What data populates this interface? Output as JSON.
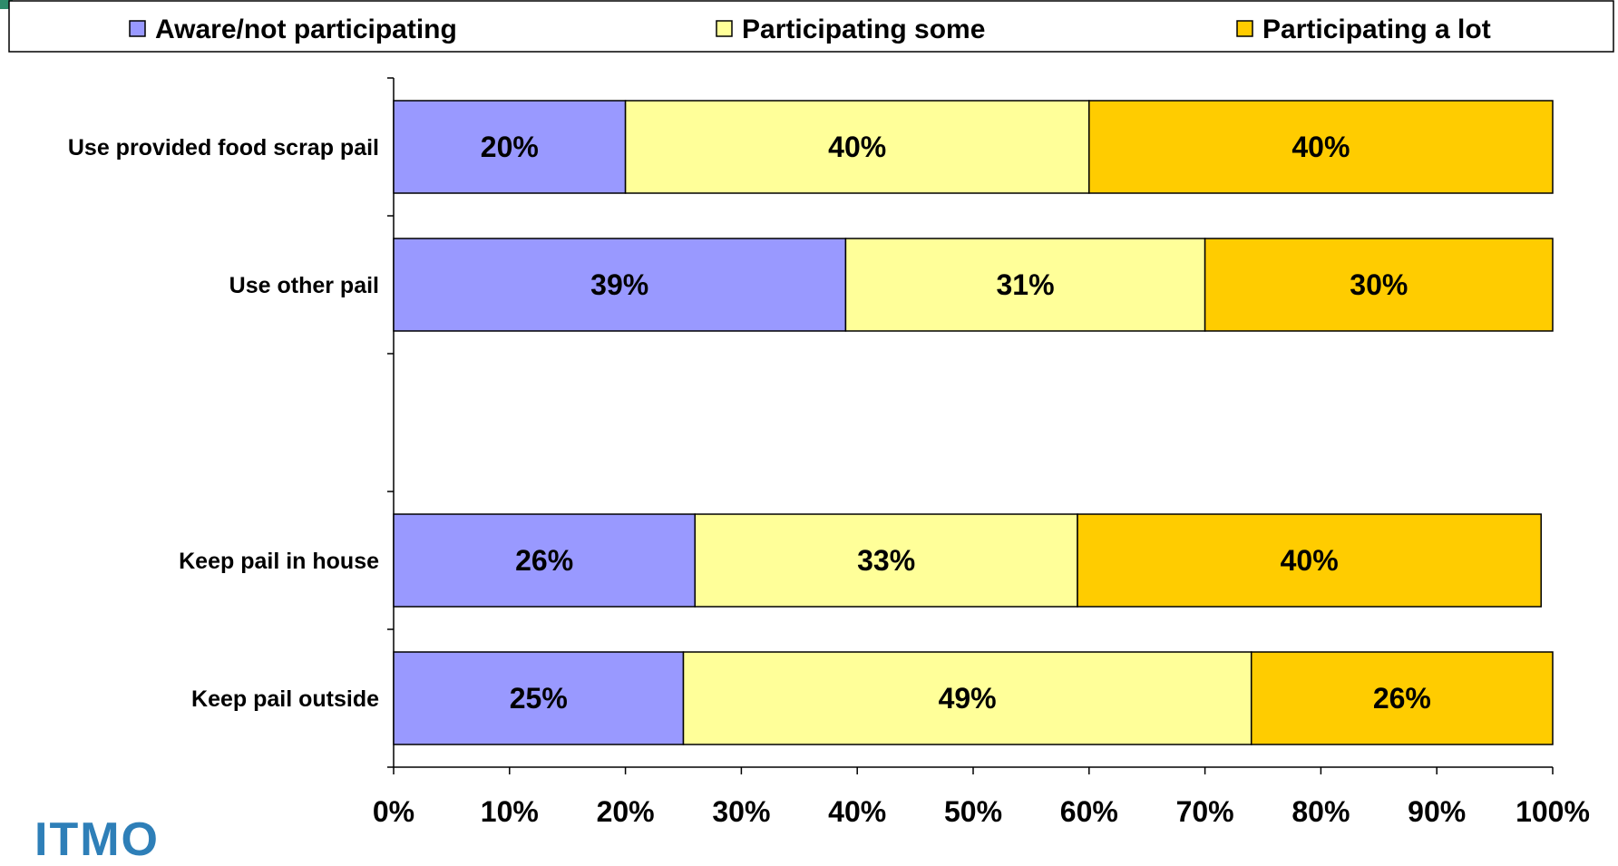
{
  "chart_data": {
    "type": "bar",
    "orientation": "horizontal",
    "stacked": true,
    "categories": [
      "Use provided food scrap pail",
      "Use other pail",
      "",
      "Keep pail in house",
      "Keep pail outside"
    ],
    "series": [
      {
        "name": "Aware/not participating",
        "color": "#9999ff",
        "values": [
          20,
          39,
          null,
          26,
          25
        ]
      },
      {
        "name": "Participating some",
        "color": "#ffff99",
        "values": [
          40,
          31,
          null,
          33,
          49
        ]
      },
      {
        "name": "Participating a lot",
        "color": "#ffcc00",
        "values": [
          40,
          30,
          null,
          40,
          26
        ]
      }
    ],
    "data_labels": [
      [
        "20%",
        "40%",
        "40%"
      ],
      [
        "39%",
        "31%",
        "30%"
      ],
      null,
      [
        "26%",
        "33%",
        "40%"
      ],
      [
        "25%",
        "49%",
        "26%"
      ]
    ],
    "x_ticks": [
      "0%",
      "10%",
      "20%",
      "30%",
      "40%",
      "50%",
      "60%",
      "70%",
      "80%",
      "90%",
      "100%"
    ],
    "xlim": [
      0,
      100
    ],
    "xlabel": "",
    "ylabel": "",
    "title": "",
    "legend_position": "top",
    "grid": false
  }
}
